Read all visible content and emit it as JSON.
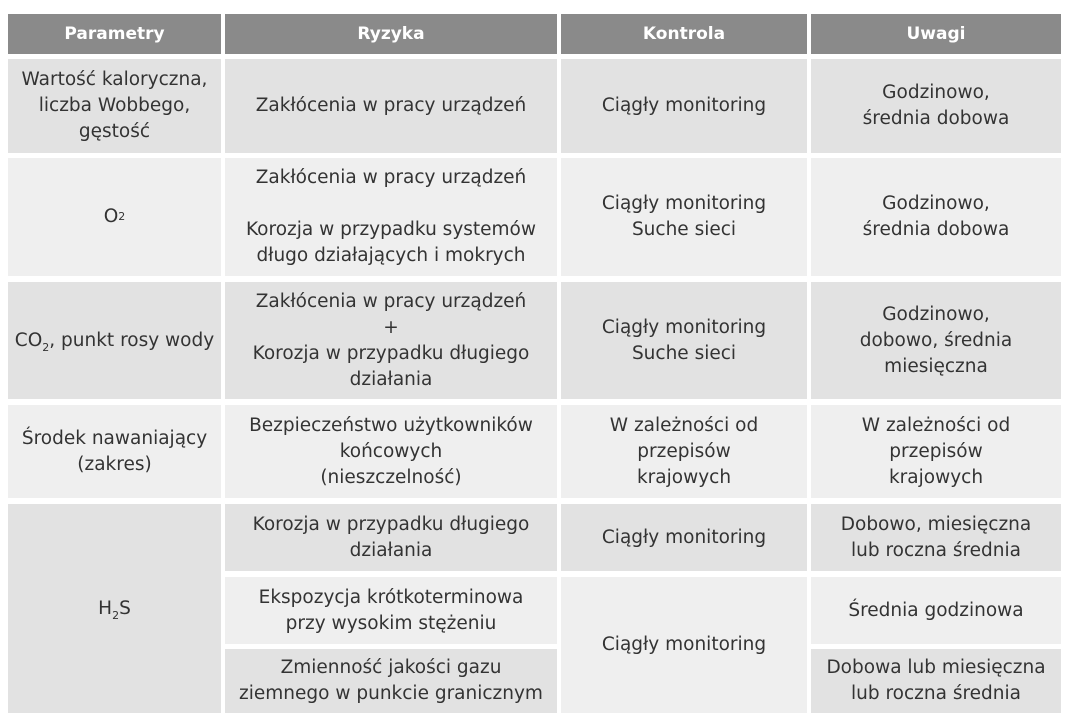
{
  "headers": [
    "Parametry",
    "Ryzyka",
    "Kontrola",
    "Uwagi"
  ],
  "rows": [
    {
      "param": "Wartość kaloryczna,\nliczba Wobbego,\ngęstość",
      "risk": "Zakłócenia w pracy urządzeń",
      "control": "Ciągły monitoring",
      "notes": "Godzinowo,\nśrednia dobowa"
    },
    {
      "param_main": "O",
      "param_sub": "2",
      "risk": "Zakłócenia w pracy urządzeń\n\nKorozja w przypadku systemów\ndługo działających i mokrych",
      "control": "Ciągły monitoring\nSuche sieci",
      "notes": "Godzinowo,\nśrednia dobowa"
    },
    {
      "param_main": "CO",
      "param_sub": "2",
      "param_rest": ", punkt rosy wody",
      "risk": "Zakłócenia w pracy urządzeń\n+\nKorozja w przypadku długiego\ndziałania",
      "control": "Ciągły monitoring\nSuche sieci",
      "notes": "Godzinowo,\ndobowo, średnia\nmiesięczna"
    },
    {
      "param": "Środek nawaniający\n(zakres)",
      "risk": "Bezpieczeństwo użytkowników\nkońcowych\n(nieszczelność)",
      "control": "W zależności od przepisów\nkrajowych",
      "notes": "W zależności od przepisów\nkrajowych"
    },
    {
      "param_main": "H",
      "param_sub": "2",
      "param_rest": "S",
      "subrows": [
        {
          "risk": "Korozja w przypadku długiego\ndziałania",
          "control": "Ciągły monitoring",
          "notes": "Dobowo, miesięczna\nlub roczna średnia"
        },
        {
          "risk": "Ekspozycja krótkoterminowa\nprzy wysokim stężeniu",
          "notes": "Średnia godzinowa"
        },
        {
          "risk": "Zmienność jakości gazu\nziemnego w punkcie granicznym",
          "notes": "Dobowa lub miesięczna\nlub roczna średnia"
        }
      ],
      "control_shared": "Ciągły monitoring"
    }
  ]
}
